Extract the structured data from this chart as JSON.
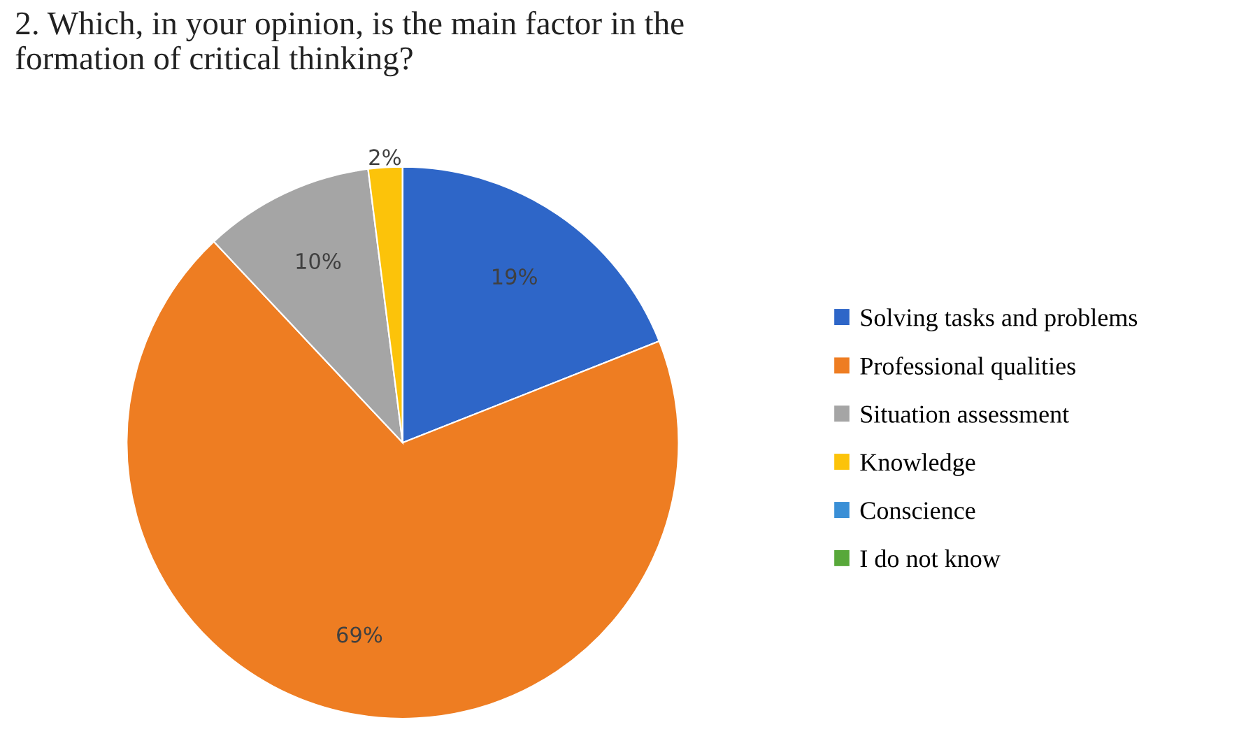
{
  "chart_data": {
    "type": "pie",
    "title": "2. Which, in your opinion, is the main factor in the\nformation of critical thinking?",
    "categories": [
      "Solving tasks and problems",
      "Professional qualities",
      "Situation assessment",
      "Knowledge",
      "Conscience",
      "I do not know"
    ],
    "values": [
      19,
      69,
      10,
      2,
      0,
      0
    ],
    "colors": [
      "#2e66c8",
      "#ee7d22",
      "#a5a5a5",
      "#fcc30a",
      "#3a8fd6",
      "#58a83a"
    ],
    "value_labels": [
      "19%",
      "69%",
      "10%",
      "2%",
      null,
      null
    ],
    "legend": "right"
  }
}
